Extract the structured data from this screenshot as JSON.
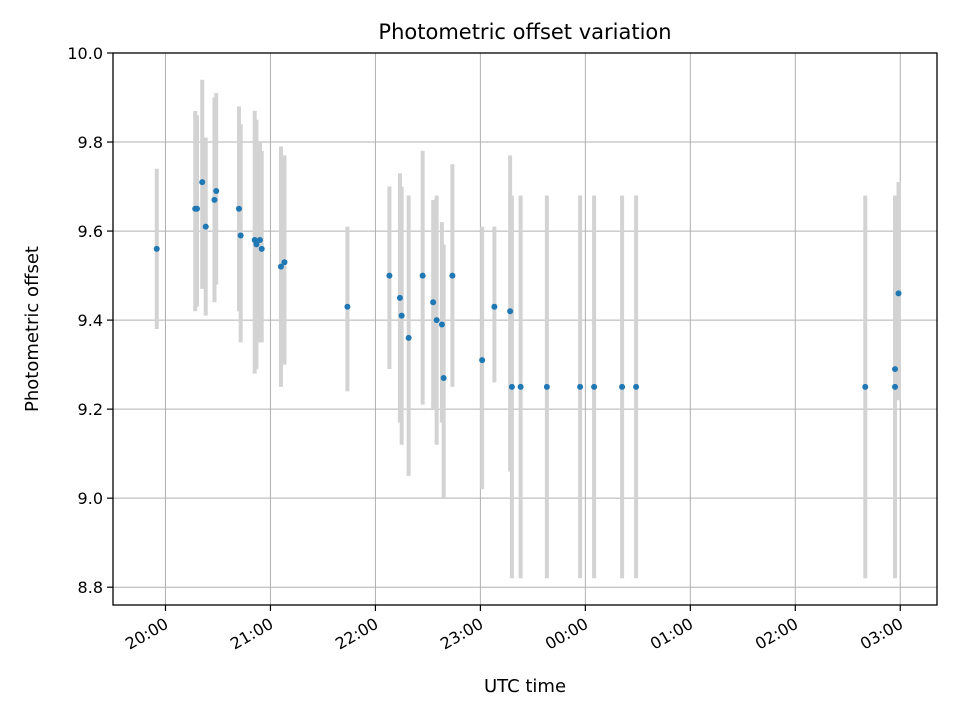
{
  "chart_data": {
    "type": "scatter",
    "title": "Photometric offset variation",
    "xlabel": "UTC time",
    "ylabel": "Photometric offset",
    "ylim": [
      8.76,
      10.0
    ],
    "xlim_hours": [
      19.5,
      27.35
    ],
    "x_day_origin": "19:00 day 0",
    "x_ticks": [
      "20:00",
      "21:00",
      "22:00",
      "23:00",
      "00:00",
      "01:00",
      "02:00",
      "03:00"
    ],
    "y_ticks": [
      "8.8",
      "9.0",
      "9.2",
      "9.4",
      "9.6",
      "9.8",
      "10.0"
    ],
    "grid": true,
    "point_color": "#1f77b4",
    "errorbar_color": "#d3d3d3",
    "points": [
      {
        "t": "19:55",
        "y": 9.56,
        "lo": 9.38,
        "hi": 9.74
      },
      {
        "t": "20:17",
        "y": 9.65,
        "lo": 9.42,
        "hi": 9.87
      },
      {
        "t": "20:18",
        "y": 9.65,
        "lo": 9.43,
        "hi": 9.86
      },
      {
        "t": "20:21",
        "y": 9.71,
        "lo": 9.47,
        "hi": 9.94
      },
      {
        "t": "20:23",
        "y": 9.61,
        "lo": 9.41,
        "hi": 9.81
      },
      {
        "t": "20:28",
        "y": 9.67,
        "lo": 9.44,
        "hi": 9.9
      },
      {
        "t": "20:29",
        "y": 9.69,
        "lo": 9.48,
        "hi": 9.91
      },
      {
        "t": "20:42",
        "y": 9.65,
        "lo": 9.42,
        "hi": 9.88
      },
      {
        "t": "20:43",
        "y": 9.59,
        "lo": 9.35,
        "hi": 9.84
      },
      {
        "t": "20:51",
        "y": 9.58,
        "lo": 9.28,
        "hi": 9.87
      },
      {
        "t": "20:52",
        "y": 9.57,
        "lo": 9.29,
        "hi": 9.85
      },
      {
        "t": "20:54",
        "y": 9.58,
        "lo": 9.35,
        "hi": 9.8
      },
      {
        "t": "20:55",
        "y": 9.56,
        "lo": 9.35,
        "hi": 9.78
      },
      {
        "t": "21:06",
        "y": 9.52,
        "lo": 9.25,
        "hi": 9.79
      },
      {
        "t": "21:08",
        "y": 9.53,
        "lo": 9.3,
        "hi": 9.77
      },
      {
        "t": "21:44",
        "y": 9.43,
        "lo": 9.24,
        "hi": 9.61
      },
      {
        "t": "22:08",
        "y": 9.5,
        "lo": 9.29,
        "hi": 9.7
      },
      {
        "t": "22:14",
        "y": 9.45,
        "lo": 9.17,
        "hi": 9.73
      },
      {
        "t": "22:15",
        "y": 9.41,
        "lo": 9.12,
        "hi": 9.7
      },
      {
        "t": "22:19",
        "y": 9.36,
        "lo": 9.05,
        "hi": 9.68
      },
      {
        "t": "22:27",
        "y": 9.5,
        "lo": 9.21,
        "hi": 9.78
      },
      {
        "t": "22:33",
        "y": 9.44,
        "lo": 9.2,
        "hi": 9.67
      },
      {
        "t": "22:35",
        "y": 9.4,
        "lo": 9.12,
        "hi": 9.68
      },
      {
        "t": "22:38",
        "y": 9.39,
        "lo": 9.17,
        "hi": 9.62
      },
      {
        "t": "22:39",
        "y": 9.27,
        "lo": 9.0,
        "hi": 9.57
      },
      {
        "t": "22:44",
        "y": 9.5,
        "lo": 9.25,
        "hi": 9.75
      },
      {
        "t": "23:01",
        "y": 9.31,
        "lo": 9.02,
        "hi": 9.61
      },
      {
        "t": "23:08",
        "y": 9.43,
        "lo": 9.26,
        "hi": 9.61
      },
      {
        "t": "23:17",
        "y": 9.42,
        "lo": 9.06,
        "hi": 9.77
      },
      {
        "t": "23:18",
        "y": 9.25,
        "lo": 8.82,
        "hi": 9.68
      },
      {
        "t": "23:23",
        "y": 9.25,
        "lo": 8.82,
        "hi": 9.68
      },
      {
        "t": "23:38",
        "y": 9.25,
        "lo": 8.82,
        "hi": 9.68
      },
      {
        "t": "23:57",
        "y": 9.25,
        "lo": 8.82,
        "hi": 9.68
      },
      {
        "t": "00:05",
        "y": 9.25,
        "lo": 8.82,
        "hi": 9.68
      },
      {
        "t": "00:21",
        "y": 9.25,
        "lo": 8.82,
        "hi": 9.68
      },
      {
        "t": "00:29",
        "y": 9.25,
        "lo": 8.82,
        "hi": 9.68
      },
      {
        "t": "02:40",
        "y": 9.25,
        "lo": 8.82,
        "hi": 9.68
      },
      {
        "t": "02:57",
        "y": 9.29,
        "lo": 8.9,
        "hi": 9.68
      },
      {
        "t": "02:57",
        "y": 9.25,
        "lo": 8.82,
        "hi": 9.68
      },
      {
        "t": "02:59",
        "y": 9.46,
        "lo": 9.22,
        "hi": 9.71
      }
    ]
  }
}
